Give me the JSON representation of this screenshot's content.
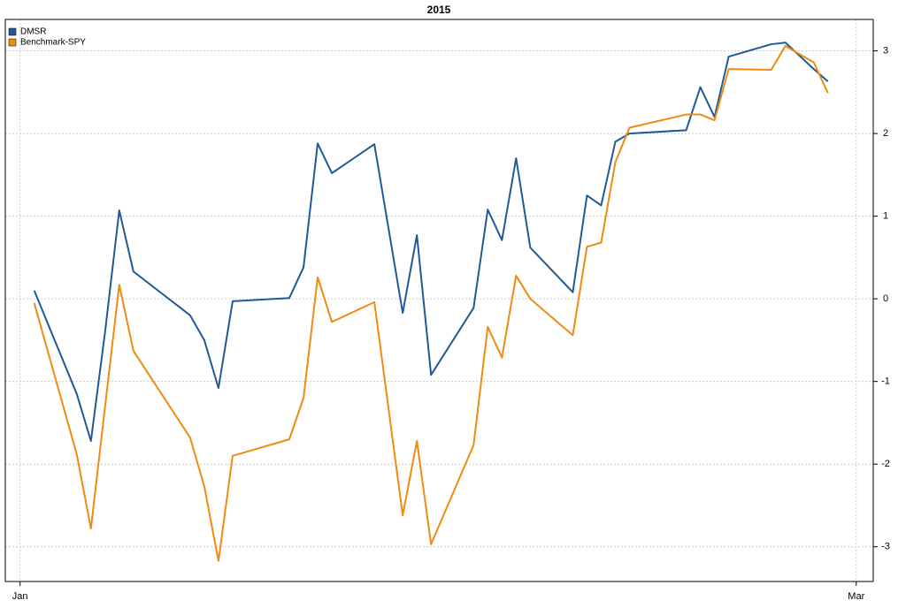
{
  "chart_data": {
    "type": "line",
    "title": "2015",
    "x": [
      2,
      5,
      6,
      7,
      8,
      9,
      13,
      14,
      15,
      16,
      20,
      21,
      22,
      23,
      26,
      28,
      29,
      30,
      33,
      34,
      35,
      36,
      37,
      40,
      41,
      42,
      43,
      44,
      48,
      49,
      50,
      51,
      54,
      55,
      57,
      58
    ],
    "series": [
      {
        "name": "DMSR",
        "color": "#1f5a94",
        "values": [
          0.1,
          -1.15,
          -1.72,
          -0.4,
          1.07,
          0.33,
          -0.2,
          -0.5,
          -1.08,
          -0.03,
          0.01,
          0.38,
          1.88,
          1.52,
          1.87,
          -0.17,
          0.77,
          -0.92,
          -0.11,
          1.08,
          0.71,
          1.7,
          0.62,
          0.08,
          1.25,
          1.13,
          1.9,
          2.0,
          2.04,
          2.56,
          2.2,
          2.93,
          3.08,
          3.1,
          2.78,
          2.63
        ]
      },
      {
        "name": "Benchmark-SPY",
        "color": "#f08a12",
        "values": [
          -0.05,
          -1.88,
          -2.78,
          -1.3,
          0.17,
          -0.63,
          -1.68,
          -2.27,
          -3.17,
          -1.9,
          -1.7,
          -1.2,
          0.26,
          -0.28,
          -0.04,
          -2.62,
          -1.72,
          -2.97,
          -1.77,
          -0.34,
          -0.71,
          0.28,
          0.0,
          -0.44,
          0.63,
          0.68,
          1.65,
          2.07,
          2.23,
          2.23,
          2.16,
          2.78,
          2.77,
          3.06,
          2.86,
          2.49
        ]
      }
    ],
    "xlim": [
      -0.04,
      61.2
    ],
    "xticks": [
      {
        "value": 1,
        "label": "Jan"
      },
      {
        "value": 60,
        "label": "Mar"
      }
    ],
    "ylim": [
      -3.42,
      3.38
    ],
    "yticks": [
      -3,
      -2,
      -1,
      0,
      1,
      2,
      3
    ],
    "grid": true,
    "legend": "top-left"
  }
}
